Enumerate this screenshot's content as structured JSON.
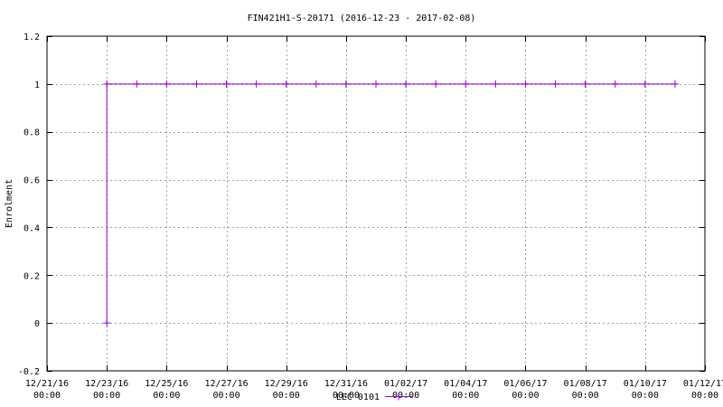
{
  "chart_data": {
    "type": "line",
    "title": "FIN421H1-S-20171 (2016-12-23 - 2017-02-08)",
    "xlabel": "",
    "ylabel": "Enrolment",
    "xlim": [
      "2016-12-21 00:00",
      "2017-01-12 00:00"
    ],
    "ylim": [
      -0.2,
      1.2
    ],
    "x_tick_labels": [
      [
        "12/21/16",
        "00:00"
      ],
      [
        "12/23/16",
        "00:00"
      ],
      [
        "12/25/16",
        "00:00"
      ],
      [
        "12/27/16",
        "00:00"
      ],
      [
        "12/29/16",
        "00:00"
      ],
      [
        "12/31/16",
        "00:00"
      ],
      [
        "01/02/17",
        "00:00"
      ],
      [
        "01/04/17",
        "00:00"
      ],
      [
        "01/06/17",
        "00:00"
      ],
      [
        "01/08/17",
        "00:00"
      ],
      [
        "01/10/17",
        "00:00"
      ],
      [
        "01/12/17",
        "00:00"
      ]
    ],
    "x_tick_dates": [
      "2016-12-21",
      "2016-12-23",
      "2016-12-25",
      "2016-12-27",
      "2016-12-29",
      "2016-12-31",
      "2017-01-02",
      "2017-01-04",
      "2017-01-06",
      "2017-01-08",
      "2017-01-10",
      "2017-01-12"
    ],
    "y_ticks": [
      -0.2,
      0,
      0.2,
      0.4,
      0.6,
      0.8,
      1,
      1.2
    ],
    "y_tick_labels": [
      "-0.2",
      "0",
      "0.2",
      "0.4",
      "0.6",
      "0.8",
      "1",
      "1.2"
    ],
    "grid": true,
    "legend_position": "bottom-center",
    "series": [
      {
        "name": "LEC 0101",
        "color": "#9400d3",
        "marker": "plus",
        "step": true,
        "x": [
          "2016-12-23",
          "2016-12-23",
          "2016-12-24",
          "2016-12-25",
          "2016-12-26",
          "2016-12-27",
          "2016-12-28",
          "2016-12-29",
          "2016-12-30",
          "2016-12-31",
          "2017-01-01",
          "2017-01-02",
          "2017-01-03",
          "2017-01-04",
          "2017-01-05",
          "2017-01-06",
          "2017-01-07",
          "2017-01-08",
          "2017-01-09",
          "2017-01-10",
          "2017-01-11"
        ],
        "y": [
          0,
          1,
          1,
          1,
          1,
          1,
          1,
          1,
          1,
          1,
          1,
          1,
          1,
          1,
          1,
          1,
          1,
          1,
          1,
          1,
          1
        ]
      }
    ]
  }
}
